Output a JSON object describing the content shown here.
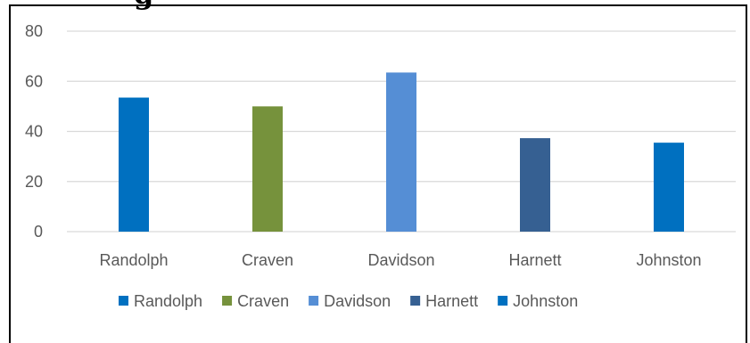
{
  "title_fragment": "g",
  "chart_data": {
    "type": "bar",
    "title": "",
    "xlabel": "",
    "ylabel": "",
    "categories": [
      "Randolph",
      "Craven",
      "Davidson",
      "Harnett",
      "Johnston"
    ],
    "values": [
      53.5,
      50,
      63.5,
      37.3,
      35.5
    ],
    "ylim": [
      0,
      80
    ],
    "yticks": [
      0,
      20,
      40,
      60,
      80
    ],
    "grid": true,
    "legend": {
      "position": "bottom",
      "entries": [
        "Randolph",
        "Craven",
        "Davidson",
        "Harnett",
        "Johnston"
      ]
    },
    "colors": [
      "#0070C0",
      "#76923C",
      "#558ED5",
      "#366092",
      "#0070C0"
    ]
  }
}
